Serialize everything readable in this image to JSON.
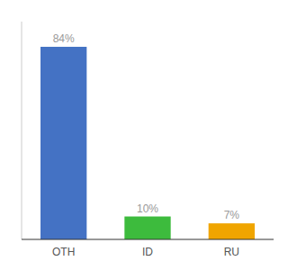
{
  "chart_data": {
    "type": "bar",
    "categories": [
      "OTH",
      "ID",
      "RU"
    ],
    "values": [
      84,
      10,
      7
    ],
    "value_labels": [
      "84%",
      "10%",
      "7%"
    ],
    "data_labels": true,
    "colors": [
      "#4472c4",
      "#3dbb3d",
      "#f0a500"
    ],
    "ylim": [
      0,
      95
    ],
    "tick_labels": "x",
    "grid": false
  }
}
